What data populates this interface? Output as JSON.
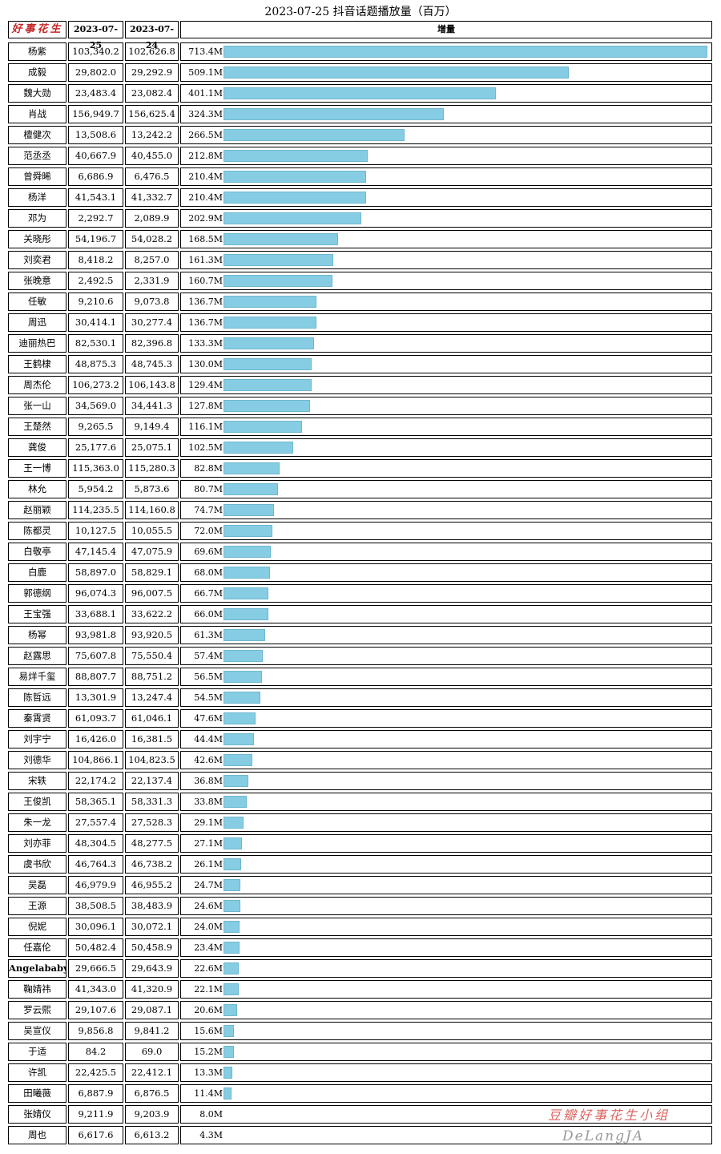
{
  "chart_data": {
    "type": "bar",
    "title": "2023-07-25 抖音话题播放量（百万）",
    "headers": {
      "logo": "好事花生",
      "col1": "2023-07-25",
      "col2": "2023-07-24",
      "col3": "增量"
    },
    "max_increase": 713.4,
    "rows": [
      {
        "name": "杨紫",
        "v1": "103,340.2",
        "v2": "102,626.8",
        "inc_label": "713.4M",
        "inc": 713.4
      },
      {
        "name": "成毅",
        "v1": "29,802.0",
        "v2": "29,292.9",
        "inc_label": "509.1M",
        "inc": 509.1
      },
      {
        "name": "魏大勋",
        "v1": "23,483.4",
        "v2": "23,082.4",
        "inc_label": "401.1M",
        "inc": 401.1
      },
      {
        "name": "肖战",
        "v1": "156,949.7",
        "v2": "156,625.4",
        "inc_label": "324.3M",
        "inc": 324.3
      },
      {
        "name": "檀健次",
        "v1": "13,508.6",
        "v2": "13,242.2",
        "inc_label": "266.5M",
        "inc": 266.5
      },
      {
        "name": "范丞丞",
        "v1": "40,667.9",
        "v2": "40,455.0",
        "inc_label": "212.8M",
        "inc": 212.8
      },
      {
        "name": "曾舜晞",
        "v1": "6,686.9",
        "v2": "6,476.5",
        "inc_label": "210.4M",
        "inc": 210.4
      },
      {
        "name": "杨洋",
        "v1": "41,543.1",
        "v2": "41,332.7",
        "inc_label": "210.4M",
        "inc": 210.4
      },
      {
        "name": "邓为",
        "v1": "2,292.7",
        "v2": "2,089.9",
        "inc_label": "202.9M",
        "inc": 202.9
      },
      {
        "name": "关晓彤",
        "v1": "54,196.7",
        "v2": "54,028.2",
        "inc_label": "168.5M",
        "inc": 168.5
      },
      {
        "name": "刘奕君",
        "v1": "8,418.2",
        "v2": "8,257.0",
        "inc_label": "161.3M",
        "inc": 161.3
      },
      {
        "name": "张晚意",
        "v1": "2,492.5",
        "v2": "2,331.9",
        "inc_label": "160.7M",
        "inc": 160.7
      },
      {
        "name": "任敏",
        "v1": "9,210.6",
        "v2": "9,073.8",
        "inc_label": "136.7M",
        "inc": 136.7
      },
      {
        "name": "周迅",
        "v1": "30,414.1",
        "v2": "30,277.4",
        "inc_label": "136.7M",
        "inc": 136.7
      },
      {
        "name": "迪丽热巴",
        "v1": "82,530.1",
        "v2": "82,396.8",
        "inc_label": "133.3M",
        "inc": 133.3
      },
      {
        "name": "王鹤棣",
        "v1": "48,875.3",
        "v2": "48,745.3",
        "inc_label": "130.0M",
        "inc": 130.0
      },
      {
        "name": "周杰伦",
        "v1": "106,273.2",
        "v2": "106,143.8",
        "inc_label": "129.4M",
        "inc": 129.4
      },
      {
        "name": "张一山",
        "v1": "34,569.0",
        "v2": "34,441.3",
        "inc_label": "127.8M",
        "inc": 127.8
      },
      {
        "name": "王楚然",
        "v1": "9,265.5",
        "v2": "9,149.4",
        "inc_label": "116.1M",
        "inc": 116.1
      },
      {
        "name": "龚俊",
        "v1": "25,177.6",
        "v2": "25,075.1",
        "inc_label": "102.5M",
        "inc": 102.5
      },
      {
        "name": "王一博",
        "v1": "115,363.0",
        "v2": "115,280.3",
        "inc_label": "82.8M",
        "inc": 82.8
      },
      {
        "name": "林允",
        "v1": "5,954.2",
        "v2": "5,873.6",
        "inc_label": "80.7M",
        "inc": 80.7
      },
      {
        "name": "赵丽颖",
        "v1": "114,235.5",
        "v2": "114,160.8",
        "inc_label": "74.7M",
        "inc": 74.7
      },
      {
        "name": "陈都灵",
        "v1": "10,127.5",
        "v2": "10,055.5",
        "inc_label": "72.0M",
        "inc": 72.0
      },
      {
        "name": "白敬亭",
        "v1": "47,145.4",
        "v2": "47,075.9",
        "inc_label": "69.6M",
        "inc": 69.6
      },
      {
        "name": "白鹿",
        "v1": "58,897.0",
        "v2": "58,829.1",
        "inc_label": "68.0M",
        "inc": 68.0
      },
      {
        "name": "郭德纲",
        "v1": "96,074.3",
        "v2": "96,007.5",
        "inc_label": "66.7M",
        "inc": 66.7
      },
      {
        "name": "王宝强",
        "v1": "33,688.1",
        "v2": "33,622.2",
        "inc_label": "66.0M",
        "inc": 66.0
      },
      {
        "name": "杨幂",
        "v1": "93,981.8",
        "v2": "93,920.5",
        "inc_label": "61.3M",
        "inc": 61.3
      },
      {
        "name": "赵露思",
        "v1": "75,607.8",
        "v2": "75,550.4",
        "inc_label": "57.4M",
        "inc": 57.4
      },
      {
        "name": "易烊千玺",
        "v1": "88,807.7",
        "v2": "88,751.2",
        "inc_label": "56.5M",
        "inc": 56.5
      },
      {
        "name": "陈哲远",
        "v1": "13,301.9",
        "v2": "13,247.4",
        "inc_label": "54.5M",
        "inc": 54.5
      },
      {
        "name": "秦霄贤",
        "v1": "61,093.7",
        "v2": "61,046.1",
        "inc_label": "47.6M",
        "inc": 47.6
      },
      {
        "name": "刘宇宁",
        "v1": "16,426.0",
        "v2": "16,381.5",
        "inc_label": "44.4M",
        "inc": 44.4
      },
      {
        "name": "刘德华",
        "v1": "104,866.1",
        "v2": "104,823.5",
        "inc_label": "42.6M",
        "inc": 42.6
      },
      {
        "name": "宋轶",
        "v1": "22,174.2",
        "v2": "22,137.4",
        "inc_label": "36.8M",
        "inc": 36.8
      },
      {
        "name": "王俊凯",
        "v1": "58,365.1",
        "v2": "58,331.3",
        "inc_label": "33.8M",
        "inc": 33.8
      },
      {
        "name": "朱一龙",
        "v1": "27,557.4",
        "v2": "27,528.3",
        "inc_label": "29.1M",
        "inc": 29.1
      },
      {
        "name": "刘亦菲",
        "v1": "48,304.5",
        "v2": "48,277.5",
        "inc_label": "27.1M",
        "inc": 27.1
      },
      {
        "name": "虞书欣",
        "v1": "46,764.3",
        "v2": "46,738.2",
        "inc_label": "26.1M",
        "inc": 26.1
      },
      {
        "name": "吴磊",
        "v1": "46,979.9",
        "v2": "46,955.2",
        "inc_label": "24.7M",
        "inc": 24.7
      },
      {
        "name": "王源",
        "v1": "38,508.5",
        "v2": "38,483.9",
        "inc_label": "24.6M",
        "inc": 24.6
      },
      {
        "name": "倪妮",
        "v1": "30,096.1",
        "v2": "30,072.1",
        "inc_label": "24.0M",
        "inc": 24.0
      },
      {
        "name": "任嘉伦",
        "v1": "50,482.4",
        "v2": "50,458.9",
        "inc_label": "23.4M",
        "inc": 23.4
      },
      {
        "name": "Angelababy",
        "v1": "29,666.5",
        "v2": "29,643.9",
        "inc_label": "22.6M",
        "inc": 22.6
      },
      {
        "name": "鞠婧祎",
        "v1": "41,343.0",
        "v2": "41,320.9",
        "inc_label": "22.1M",
        "inc": 22.1
      },
      {
        "name": "罗云熙",
        "v1": "29,107.6",
        "v2": "29,087.1",
        "inc_label": "20.6M",
        "inc": 20.6
      },
      {
        "name": "吴宣仪",
        "v1": "9,856.8",
        "v2": "9,841.2",
        "inc_label": "15.6M",
        "inc": 15.6
      },
      {
        "name": "于适",
        "v1": "84.2",
        "v2": "69.0",
        "inc_label": "15.2M",
        "inc": 15.2
      },
      {
        "name": "许凯",
        "v1": "22,425.5",
        "v2": "22,412.1",
        "inc_label": "13.3M",
        "inc": 13.3
      },
      {
        "name": "田曦薇",
        "v1": "6,887.9",
        "v2": "6,876.5",
        "inc_label": "11.4M",
        "inc": 11.4
      },
      {
        "name": "张婧仪",
        "v1": "9,211.9",
        "v2": "9,203.9",
        "inc_label": "8.0M",
        "inc": 8.0
      },
      {
        "name": "周也",
        "v1": "6,617.6",
        "v2": "6,613.2",
        "inc_label": "4.3M",
        "inc": 4.3
      }
    ]
  },
  "watermark": {
    "line1": "豆瓣好事花生小组",
    "line2": "DeLangJA"
  },
  "colors": {
    "bar": "#86cde3",
    "logo": "#c62828"
  }
}
